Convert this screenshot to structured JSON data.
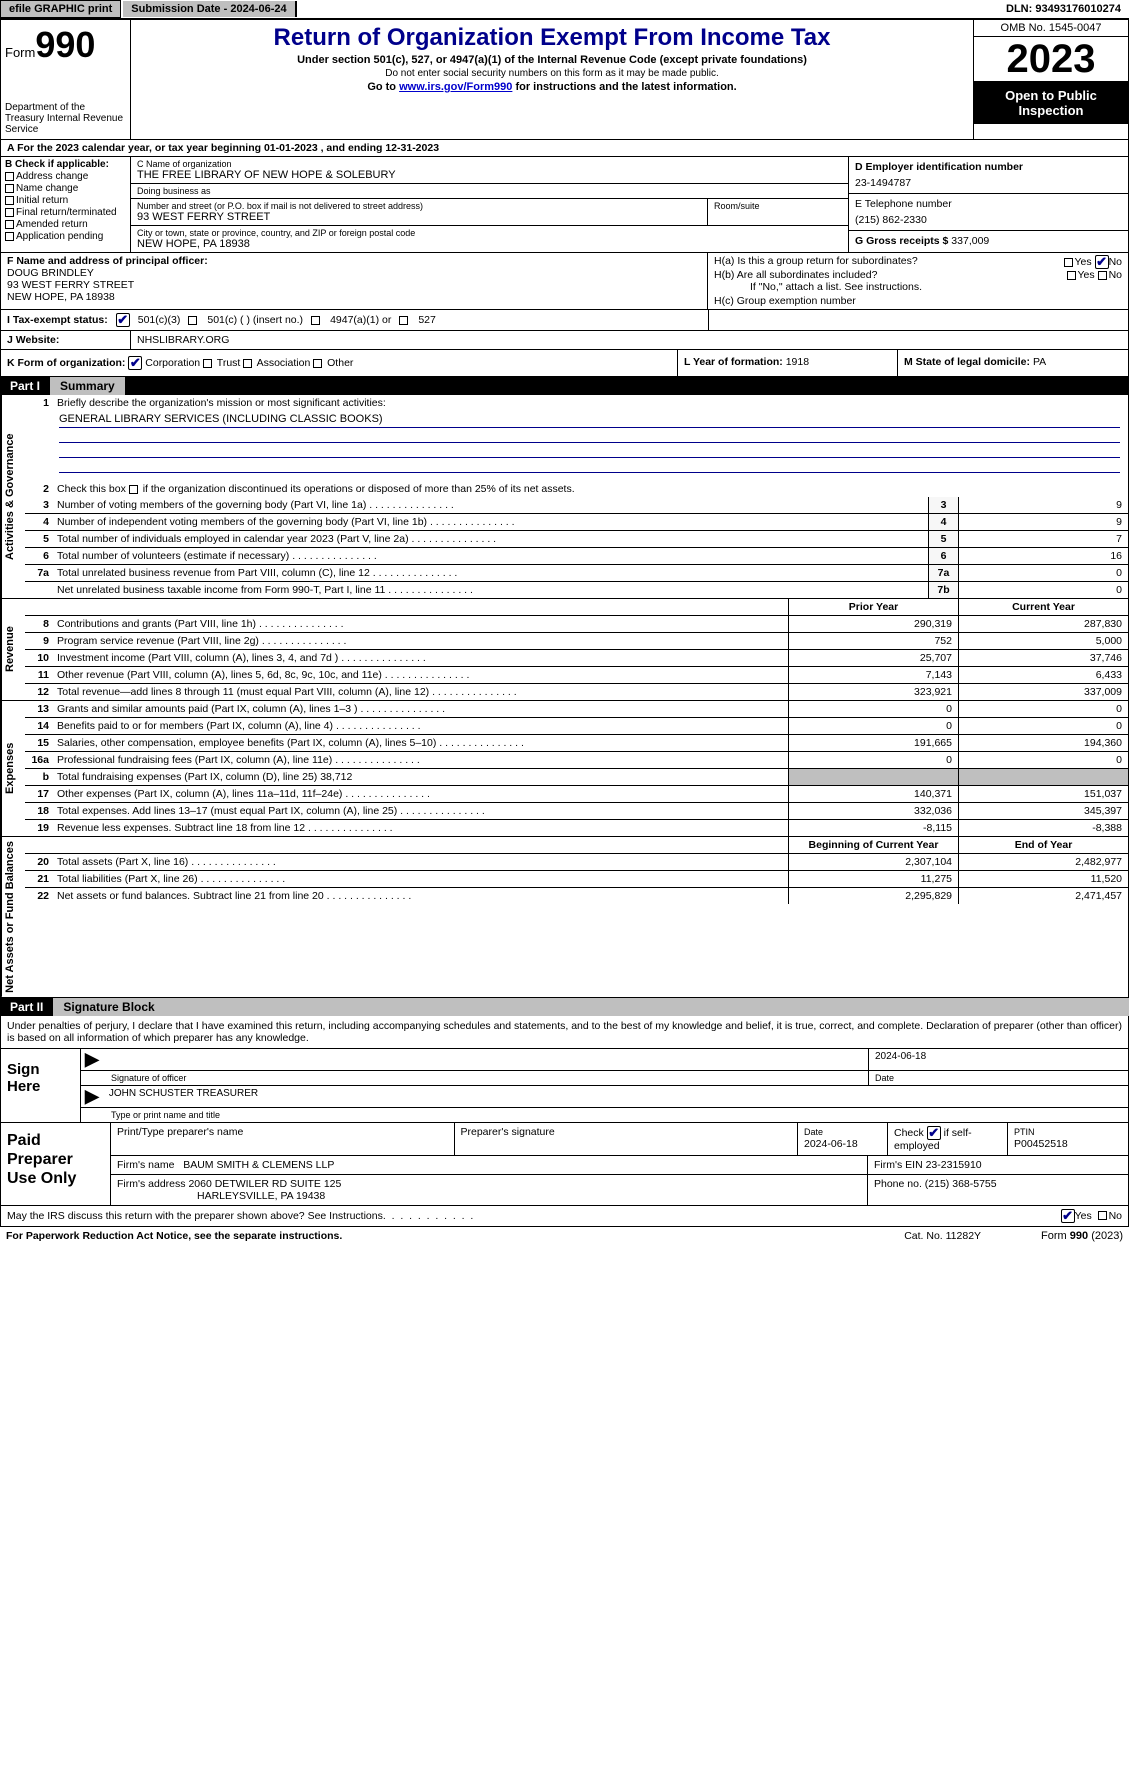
{
  "topbar": {
    "efile": "efile GRAPHIC print",
    "submission_label": "Submission Date - ",
    "submission_date": "2024-06-24",
    "dln_label": "DLN: ",
    "dln": "93493176010274"
  },
  "header": {
    "form_prefix": "Form",
    "form_number": "990",
    "dept": "Department of the Treasury Internal Revenue Service",
    "title": "Return of Organization Exempt From Income Tax",
    "sub1": "Under section 501(c), 527, or 4947(a)(1) of the Internal Revenue Code (except private foundations)",
    "sub2": "Do not enter social security numbers on this form as it may be made public.",
    "sub3_a": "Go to ",
    "sub3_link": "www.irs.gov/Form990",
    "sub3_b": " for instructions and the latest information.",
    "omb": "OMB No. 1545-0047",
    "year": "2023",
    "inspect": "Open to Public Inspection"
  },
  "rowA": "A For the 2023 calendar year, or tax year beginning 01-01-2023    , and ending 12-31-2023",
  "B": {
    "label": "B Check if applicable:",
    "opts": [
      "Address change",
      "Name change",
      "Initial return",
      "Final return/terminated",
      "Amended return",
      "Application pending"
    ]
  },
  "C": {
    "name_lbl": "C Name of organization",
    "name": "THE FREE LIBRARY OF NEW HOPE & SOLEBURY",
    "dba_lbl": "Doing business as",
    "dba": "",
    "addr_lbl": "Number and street (or P.O. box if mail is not delivered to street address)",
    "addr": "93 WEST FERRY STREET",
    "room_lbl": "Room/suite",
    "city_lbl": "City or town, state or province, country, and ZIP or foreign postal code",
    "city": "NEW HOPE, PA  18938"
  },
  "D": {
    "lbl": "D Employer identification number",
    "val": "23-1494787"
  },
  "E": {
    "lbl": "E Telephone number",
    "val": "(215) 862-2330"
  },
  "G": {
    "lbl": "G Gross receipts $ ",
    "val": "337,009"
  },
  "F": {
    "lbl": "F  Name and address of principal officer:",
    "name": "DOUG BRINDLEY",
    "addr1": "93 WEST FERRY STREET",
    "addr2": "NEW HOPE, PA  18938"
  },
  "H": {
    "a": "H(a)  Is this a group return for subordinates?",
    "b": "H(b)  Are all subordinates included?",
    "b_note": "If \"No,\" attach a list. See instructions.",
    "c": "H(c)  Group exemption number",
    "yes": "Yes",
    "no": "No"
  },
  "I": {
    "lbl": "I  Tax-exempt status:",
    "o1": "501(c)(3)",
    "o2": "501(c) (  ) (insert no.)",
    "o3": "4947(a)(1) or",
    "o4": "527"
  },
  "J": {
    "lbl": "J  Website:",
    "val": "NHSLIBRARY.ORG"
  },
  "K": {
    "lbl": "K Form of organization:",
    "o1": "Corporation",
    "o2": "Trust",
    "o3": "Association",
    "o4": "Other"
  },
  "L": {
    "lbl": "L Year of formation: ",
    "val": "1918"
  },
  "M": {
    "lbl": "M State of legal domicile: ",
    "val": "PA"
  },
  "part1": {
    "pt": "Part I",
    "tt": "Summary"
  },
  "vtabs": {
    "gov": "Activities & Governance",
    "rev": "Revenue",
    "exp": "Expenses",
    "net": "Net Assets or Fund Balances"
  },
  "s1": {
    "l1": "Briefly describe the organization's mission or most significant activities:",
    "l1v": "GENERAL LIBRARY SERVICES (INCLUDING CLASSIC BOOKS)",
    "l2": "Check this box        if the organization discontinued its operations or disposed of more than 25% of its net assets.",
    "rows": [
      {
        "n": "3",
        "t": "Number of voting members of the governing body (Part VI, line 1a)",
        "cn": "3",
        "v": "9"
      },
      {
        "n": "4",
        "t": "Number of independent voting members of the governing body (Part VI, line 1b)",
        "cn": "4",
        "v": "9"
      },
      {
        "n": "5",
        "t": "Total number of individuals employed in calendar year 2023 (Part V, line 2a)",
        "cn": "5",
        "v": "7"
      },
      {
        "n": "6",
        "t": "Total number of volunteers (estimate if necessary)",
        "cn": "6",
        "v": "16"
      },
      {
        "n": "7a",
        "t": "Total unrelated business revenue from Part VIII, column (C), line 12",
        "cn": "7a",
        "v": "0"
      },
      {
        "n": "",
        "t": "Net unrelated business taxable income from Form 990-T, Part I, line 11",
        "cn": "7b",
        "v": "0"
      }
    ]
  },
  "hdr_prior": "Prior Year",
  "hdr_curr": "Current Year",
  "revenue": [
    {
      "n": "8",
      "t": "Contributions and grants (Part VIII, line 1h)",
      "p": "290,319",
      "c": "287,830"
    },
    {
      "n": "9",
      "t": "Program service revenue (Part VIII, line 2g)",
      "p": "752",
      "c": "5,000"
    },
    {
      "n": "10",
      "t": "Investment income (Part VIII, column (A), lines 3, 4, and 7d )",
      "p": "25,707",
      "c": "37,746"
    },
    {
      "n": "11",
      "t": "Other revenue (Part VIII, column (A), lines 5, 6d, 8c, 9c, 10c, and 11e)",
      "p": "7,143",
      "c": "6,433"
    },
    {
      "n": "12",
      "t": "Total revenue—add lines 8 through 11 (must equal Part VIII, column (A), line 12)",
      "p": "323,921",
      "c": "337,009"
    }
  ],
  "expenses": [
    {
      "n": "13",
      "t": "Grants and similar amounts paid (Part IX, column (A), lines 1–3 )",
      "p": "0",
      "c": "0"
    },
    {
      "n": "14",
      "t": "Benefits paid to or for members (Part IX, column (A), line 4)",
      "p": "0",
      "c": "0"
    },
    {
      "n": "15",
      "t": "Salaries, other compensation, employee benefits (Part IX, column (A), lines 5–10)",
      "p": "191,665",
      "c": "194,360"
    },
    {
      "n": "16a",
      "t": "Professional fundraising fees (Part IX, column (A), line 11e)",
      "p": "0",
      "c": "0"
    },
    {
      "n": "b",
      "t": "Total fundraising expenses (Part IX, column (D), line 25) 38,712",
      "p": "",
      "c": "",
      "blk": true
    },
    {
      "n": "17",
      "t": "Other expenses (Part IX, column (A), lines 11a–11d, 11f–24e)",
      "p": "140,371",
      "c": "151,037"
    },
    {
      "n": "18",
      "t": "Total expenses. Add lines 13–17 (must equal Part IX, column (A), line 25)",
      "p": "332,036",
      "c": "345,397"
    },
    {
      "n": "19",
      "t": "Revenue less expenses. Subtract line 18 from line 12",
      "p": "-8,115",
      "c": "-8,388"
    }
  ],
  "hdr_begin": "Beginning of Current Year",
  "hdr_end": "End of Year",
  "netassets": [
    {
      "n": "20",
      "t": "Total assets (Part X, line 16)",
      "p": "2,307,104",
      "c": "2,482,977"
    },
    {
      "n": "21",
      "t": "Total liabilities (Part X, line 26)",
      "p": "11,275",
      "c": "11,520"
    },
    {
      "n": "22",
      "t": "Net assets or fund balances. Subtract line 21 from line 20",
      "p": "2,295,829",
      "c": "2,471,457"
    }
  ],
  "part2": {
    "pt": "Part II",
    "tt": "Signature Block"
  },
  "sig_intro": "Under penalties of perjury, I declare that I have examined this return, including accompanying schedules and statements, and to the best of my knowledge and belief, it is true, correct, and complete. Declaration of preparer (other than officer) is based on all information of which preparer has any knowledge.",
  "sign": {
    "lbl": "Sign Here",
    "date": "2024-06-18",
    "sig_lbl": "Signature of officer",
    "date_lbl": "Date",
    "name": "JOHN SCHUSTER  TREASURER",
    "name_lbl": "Type or print name and title"
  },
  "prep": {
    "lbl": "Paid Preparer Use Only",
    "h1": "Print/Type preparer's name",
    "h2": "Preparer's signature",
    "h3_lbl": "Date",
    "h3": "2024-06-18",
    "h4": "Check         if self-employed",
    "h5_lbl": "PTIN",
    "h5": "P00452518",
    "firm_lbl": "Firm's name",
    "firm": "BAUM SMITH & CLEMENS LLP",
    "ein_lbl": "Firm's EIN ",
    "ein": "23-2315910",
    "addr_lbl": "Firm's address",
    "addr1": "2060 DETWILER RD SUITE 125",
    "addr2": "HARLEYSVILLE, PA  19438",
    "phone_lbl": "Phone no. ",
    "phone": "(215) 368-5755"
  },
  "discuss": {
    "t": "May the IRS discuss this return with the preparer shown above? See Instructions.",
    "yes": "Yes",
    "no": "No"
  },
  "footer": {
    "l": "For Paperwork Reduction Act Notice, see the separate instructions.",
    "m": "Cat. No. 11282Y",
    "r": "Form 990 (2023)"
  }
}
